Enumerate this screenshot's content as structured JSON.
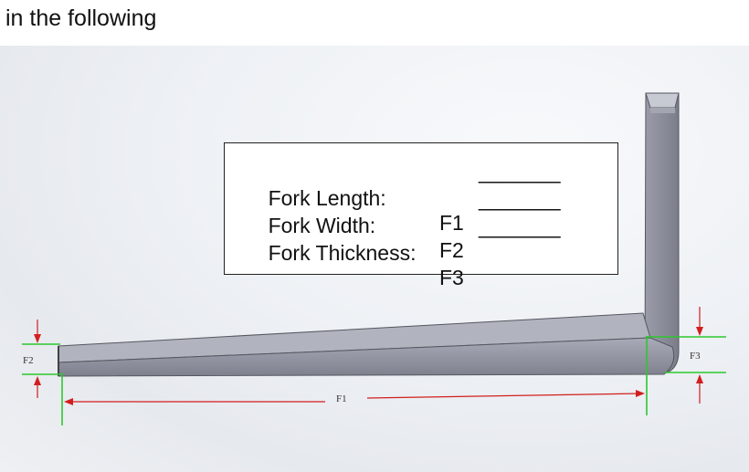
{
  "caption": "in the following",
  "fields": [
    {
      "label": "Fork Length:",
      "code": "F1",
      "blank": "_______"
    },
    {
      "label": "Fork Width:",
      "code": "F2",
      "blank": "_______"
    },
    {
      "label": "Fork Thickness:",
      "code": "F3",
      "blank": "_______"
    }
  ],
  "dimensions": {
    "f1": "F1",
    "f2": "F2",
    "f3": "F3"
  },
  "colors": {
    "fork_body": "#8c8e9c",
    "fork_top_face": "#b4b6c2",
    "dimension_red": "#d21e1e",
    "extension_green": "#2dc82d"
  }
}
